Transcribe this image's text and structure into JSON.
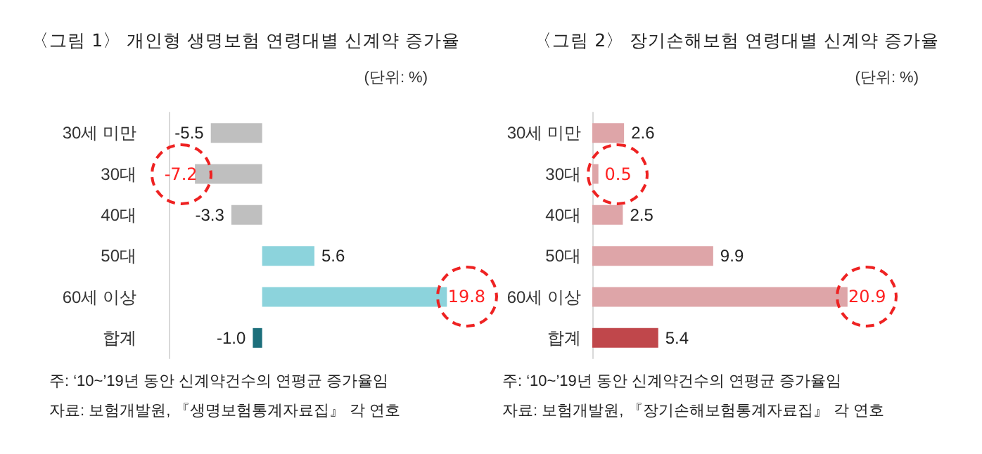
{
  "chart_data": [
    {
      "type": "bar",
      "orientation": "horizontal",
      "title": "〈그림 1〉 개인형 생명보험 연령대별 신계약 증가율",
      "subtitle": "(단위: %)",
      "categories": [
        "30세 미만",
        "30대",
        "40대",
        "50대",
        "60세 이상",
        "합계"
      ],
      "values": [
        -5.5,
        -7.2,
        -3.3,
        5.6,
        19.8,
        -1.0
      ],
      "colors": [
        "#bfbfbf",
        "#bfbfbf",
        "#bfbfbf",
        "#8cd3dc",
        "#8cd3dc",
        "#1c6f7b"
      ],
      "value_labels": [
        "-5.5",
        null,
        "-3.3",
        "5.6",
        null,
        "-1.0"
      ],
      "tick_labels": "y",
      "annotations": [
        {
          "text": "-7.2",
          "x": -7.2,
          "y": "30대"
        },
        {
          "text": "19.8",
          "x": 19.8,
          "y": "60세 이상"
        },
        "주: ‘10~’19년 동안 신계약건수의 연평균 증가율임",
        "자료: 보험개발원, 『생명보험통계자료집』 각 연호"
      ]
    },
    {
      "type": "bar",
      "orientation": "horizontal",
      "title": "〈그림 2〉 장기손해보험 연령대별 신계약 증가율",
      "subtitle": "(단위: %)",
      "categories": [
        "30세 미만",
        "30대",
        "40대",
        "50대",
        "60세 이상",
        "합계"
      ],
      "values": [
        2.6,
        0.5,
        2.5,
        9.9,
        20.9,
        5.4
      ],
      "colors": [
        "#dea5a8",
        "#dea5a8",
        "#dea5a8",
        "#dea5a8",
        "#dea5a8",
        "#c0474b"
      ],
      "value_labels": [
        "2.6",
        null,
        "2.5",
        "9.9",
        null,
        "5.4"
      ],
      "tick_labels": "y",
      "annotations": [
        {
          "text": "0.5",
          "x": 0.5,
          "y": "30대"
        },
        {
          "text": "20.9",
          "x": 20.9,
          "y": "60세 이상"
        },
        "주: ‘10~’19년 동안 신계약건수의 연평균 증가율임",
        "자료: 보험개발원, 『장기손해보험통계자료집』 각 연호"
      ]
    }
  ]
}
